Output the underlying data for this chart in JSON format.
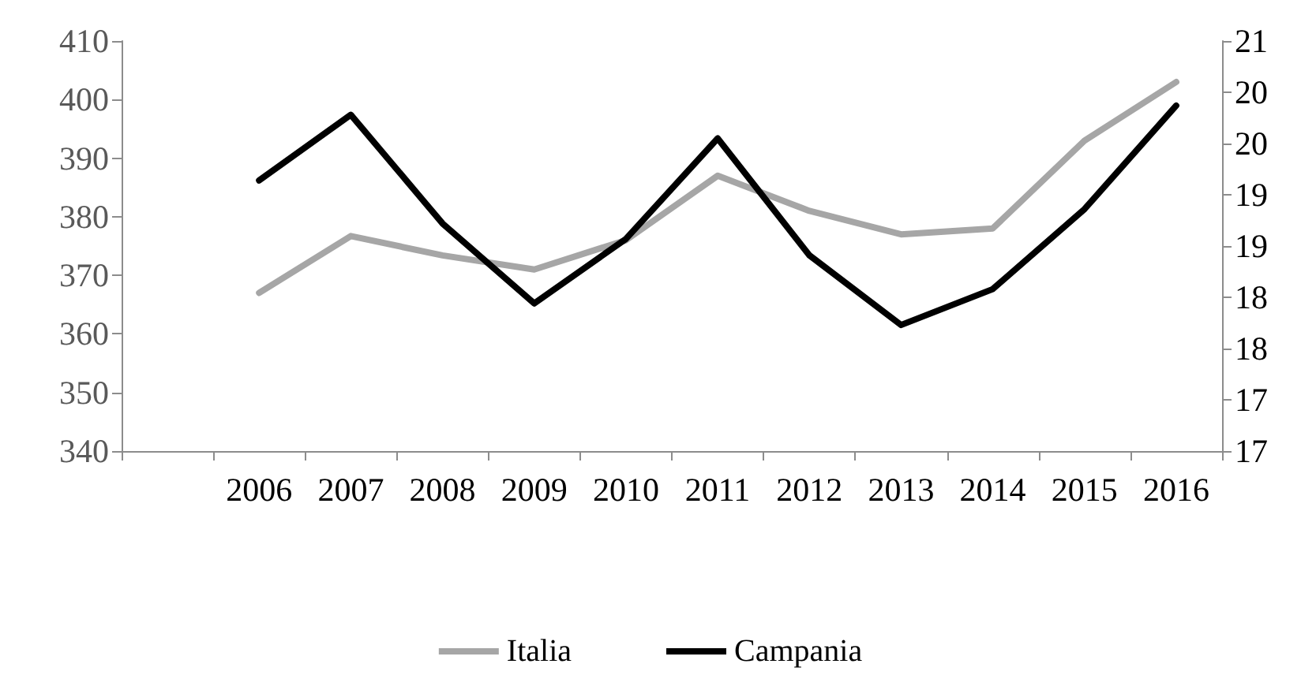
{
  "chart_data": {
    "type": "line",
    "categories": [
      null,
      "2006",
      "2007",
      "2008",
      "2009",
      "2010",
      "2011",
      "2012",
      "2013",
      "2014",
      "2015",
      "2016"
    ],
    "series": [
      {
        "name": "Italia",
        "color": "#a6a6a6",
        "values": [
          null,
          367,
          376.7,
          373.4,
          371,
          376,
          387,
          381,
          377,
          378,
          393,
          403
        ]
      },
      {
        "name": "Campania",
        "color": "#000000",
        "axis": "y2",
        "values": [
          null,
          19.64,
          20.28,
          19.22,
          18.44,
          19.07,
          20.05,
          18.91,
          18.23,
          18.58,
          19.36,
          20.37
        ]
      }
    ],
    "ylim": [
      340,
      410
    ],
    "yticks": [
      340,
      350,
      360,
      370,
      380,
      390,
      400,
      410
    ],
    "y2lim": [
      17,
      21
    ],
    "y2ticks": [
      {
        "value": 17,
        "label": "17"
      },
      {
        "value": 17.5,
        "label": "17"
      },
      {
        "value": 18,
        "label": "18"
      },
      {
        "value": 18.5,
        "label": "18"
      },
      {
        "value": 19,
        "label": "19"
      },
      {
        "value": 19.5,
        "label": "19"
      },
      {
        "value": 20,
        "label": "20"
      },
      {
        "value": 20.5,
        "label": "20"
      },
      {
        "value": 21,
        "label": "21"
      }
    ],
    "grid": false,
    "legend": "bottom",
    "marker": "none",
    "line_style": "solid"
  }
}
